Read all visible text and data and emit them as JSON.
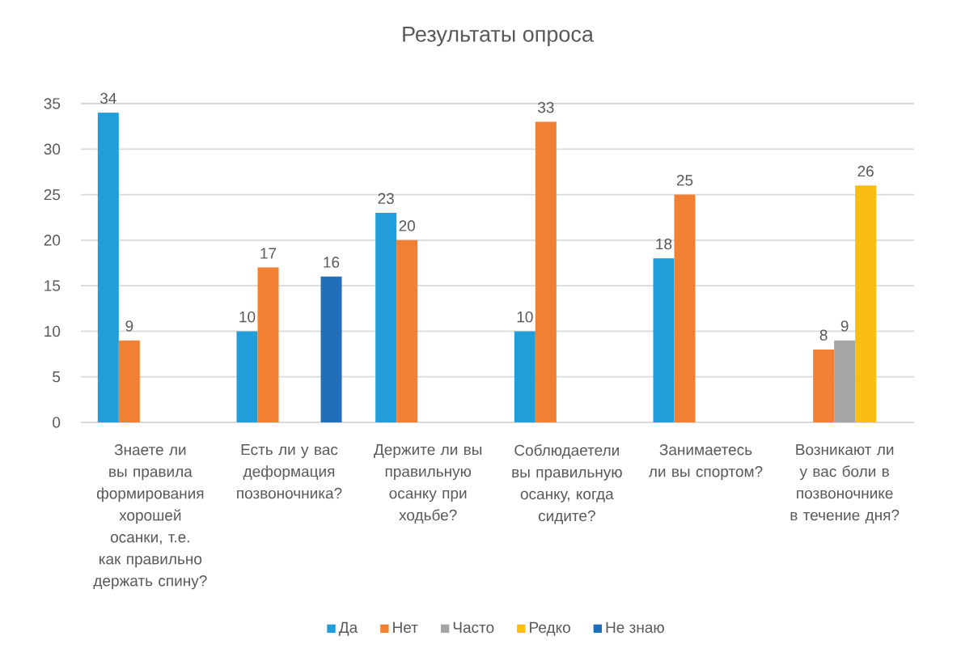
{
  "chart_data": {
    "type": "bar",
    "title": "Результаты опроса",
    "categories": [
      "Знаете ли вы правила формирования хорошей осанки, т.е. как правильно держать спину?",
      "Есть ли у вас деформация позвоночника?",
      "Держите ли вы правильную осанку при ходьбе?",
      "Соблюдаетели вы правильную осанку, когда сидите?",
      "Занимаетесь ли вы спортом?",
      "Возникают ли у вас боли в позвоночнике в течение дня?"
    ],
    "series": [
      {
        "name": "Да",
        "color": "#219ed9",
        "values": [
          34,
          10,
          23,
          10,
          18,
          null
        ]
      },
      {
        "name": "Нет",
        "color": "#f28033",
        "values": [
          9,
          17,
          20,
          33,
          25,
          8
        ]
      },
      {
        "name": "Часто",
        "color": "#a5a5a5",
        "values": [
          null,
          null,
          null,
          null,
          null,
          9
        ]
      },
      {
        "name": "Редко",
        "color": "#fbbd14",
        "values": [
          null,
          null,
          null,
          null,
          null,
          26
        ]
      },
      {
        "name": "Не знаю",
        "color": "#226fb9",
        "values": [
          null,
          16,
          null,
          null,
          null,
          null
        ]
      }
    ],
    "ylim": [
      0,
      35
    ],
    "yticks": [
      0,
      5,
      10,
      15,
      20,
      25,
      30,
      35
    ],
    "grid": "y",
    "legend": "bottom",
    "data_labels": true
  }
}
